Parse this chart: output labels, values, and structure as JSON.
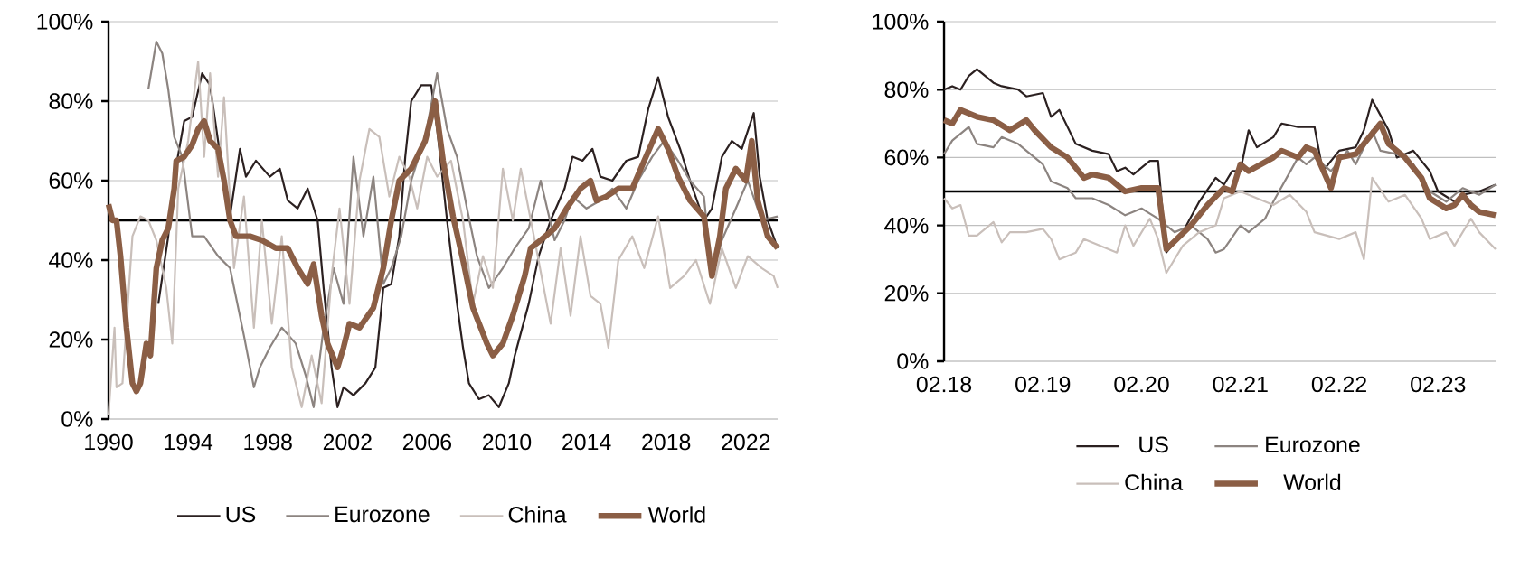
{
  "chart_data": [
    {
      "type": "line",
      "xlim": [
        1990,
        2023.6
      ],
      "ylim": [
        0,
        100
      ],
      "xticks": [
        1990,
        1994,
        1998,
        2002,
        2006,
        2010,
        2014,
        2018,
        2022
      ],
      "yticks": [
        {
          "value": 0,
          "label": "0%"
        },
        {
          "value": 20,
          "label": "20%"
        },
        {
          "value": 40,
          "label": "40%"
        },
        {
          "value": 60,
          "label": "60%"
        },
        {
          "value": 80,
          "label": "80%"
        },
        {
          "value": 100,
          "label": "100%"
        }
      ],
      "grid": "y",
      "legend": "bottom",
      "ref_lines": [
        {
          "axis": "y",
          "value": 50,
          "color": "#000000"
        }
      ],
      "series": [
        {
          "name": "US",
          "color": "#2b2020",
          "x": [
            1992.5,
            1993.0,
            1993.3,
            1993.8,
            1994.2,
            1994.7,
            1995.1,
            1995.5,
            1996.1,
            1996.6,
            1996.9,
            1997.4,
            1998.1,
            1998.6,
            1999.0,
            1999.5,
            2000.0,
            2000.5,
            2000.8,
            2001.2,
            2001.5,
            2001.8,
            2002.3,
            2002.9,
            2003.4,
            2003.8,
            2004.2,
            2004.6,
            2004.9,
            2005.2,
            2005.7,
            2006.2,
            2006.5,
            2007.0,
            2007.5,
            2007.8,
            2008.1,
            2008.6,
            2009.1,
            2009.6,
            2010.1,
            2010.4,
            2011.1,
            2011.6,
            2012.2,
            2012.9,
            2013.3,
            2013.8,
            2014.3,
            2014.7,
            2015.3,
            2016.0,
            2016.6,
            2017.1,
            2017.6,
            2018.1,
            2018.7,
            2019.2,
            2019.9,
            2020.3,
            2020.8,
            2021.3,
            2021.8,
            2022.4,
            2022.7,
            2023.1,
            2023.6
          ],
          "values": [
            29,
            46,
            61,
            75,
            76,
            87,
            84,
            70,
            51,
            68,
            61,
            65,
            61,
            63,
            55,
            53,
            58,
            50,
            33,
            13,
            3,
            8,
            6,
            9,
            13,
            33,
            34,
            46,
            66,
            80,
            84,
            84,
            73,
            50,
            29,
            18,
            9,
            5,
            6,
            3,
            9,
            16,
            29,
            41,
            50,
            58,
            66,
            65,
            68,
            61,
            60,
            65,
            66,
            78,
            86,
            76,
            68,
            60,
            50,
            53,
            66,
            70,
            68,
            77,
            61,
            50,
            43
          ]
        },
        {
          "name": "Eurozone",
          "color": "#8c8480",
          "x": [
            1992.0,
            1992.4,
            1992.7,
            1993.0,
            1993.3,
            1993.7,
            1994.2,
            1994.8,
            1995.5,
            1996.1,
            1996.8,
            1997.3,
            1997.6,
            1998.1,
            1998.7,
            1999.4,
            1999.9,
            2000.3,
            2000.8,
            2001.3,
            2001.8,
            2002.3,
            2002.8,
            2003.3,
            2003.8,
            2004.2,
            2004.7,
            2005.2,
            2005.9,
            2006.5,
            2007.0,
            2007.5,
            2008.0,
            2008.5,
            2009.1,
            2009.8,
            2010.4,
            2011.1,
            2011.7,
            2012.4,
            2012.9,
            2013.3,
            2014.0,
            2014.7,
            2015.3,
            2016.0,
            2016.6,
            2017.3,
            2017.9,
            2018.6,
            2019.2,
            2019.9,
            2020.3,
            2020.8,
            2021.5,
            2022.1,
            2022.8,
            2023.6
          ],
          "values": [
            83,
            95,
            92,
            83,
            71,
            66,
            46,
            46,
            41,
            38,
            21,
            8,
            13,
            18,
            23,
            19,
            11,
            3,
            23,
            38,
            29,
            66,
            46,
            61,
            34,
            38,
            46,
            60,
            71,
            87,
            73,
            66,
            53,
            41,
            33,
            38,
            43,
            48,
            60,
            45,
            50,
            56,
            53,
            55,
            58,
            53,
            60,
            66,
            70,
            65,
            60,
            56,
            36,
            45,
            53,
            60,
            50,
            51
          ]
        },
        {
          "name": "China",
          "color": "#c9bfba",
          "x": [
            1990.0,
            1990.3,
            1990.4,
            1990.7,
            1991.2,
            1991.6,
            1992.0,
            1992.4,
            1992.9,
            1993.2,
            1993.5,
            1994.0,
            1994.5,
            1994.8,
            1995.1,
            1995.5,
            1995.8,
            1996.3,
            1996.8,
            1997.3,
            1997.7,
            1998.2,
            1998.7,
            1999.2,
            1999.7,
            2000.2,
            2000.7,
            2001.2,
            2001.6,
            2002.1,
            2002.6,
            2003.1,
            2003.6,
            2004.1,
            2004.6,
            2005.1,
            2005.5,
            2006.0,
            2006.5,
            2007.2,
            2007.8,
            2008.3,
            2008.8,
            2009.3,
            2009.8,
            2010.3,
            2010.7,
            2011.4,
            2012.2,
            2012.7,
            2013.2,
            2013.7,
            2014.2,
            2014.7,
            2015.1,
            2015.6,
            2016.3,
            2016.9,
            2017.6,
            2018.2,
            2018.9,
            2019.5,
            2020.2,
            2020.8,
            2021.5,
            2022.1,
            2022.8,
            2023.4,
            2023.6
          ],
          "values": [
            1,
            23,
            8,
            9,
            46,
            51,
            50,
            45,
            33,
            19,
            58,
            70,
            90,
            66,
            87,
            61,
            81,
            38,
            56,
            23,
            50,
            24,
            46,
            13,
            3,
            16,
            4,
            36,
            53,
            29,
            60,
            73,
            71,
            56,
            66,
            61,
            53,
            66,
            61,
            65,
            50,
            29,
            41,
            33,
            63,
            50,
            63,
            45,
            24,
            43,
            26,
            46,
            31,
            29,
            18,
            40,
            46,
            38,
            51,
            33,
            36,
            40,
            29,
            43,
            33,
            41,
            38,
            36,
            33
          ]
        },
        {
          "name": "World",
          "color": "#8b5e45",
          "x": [
            1990.0,
            1990.2,
            1990.4,
            1990.6,
            1990.9,
            1991.2,
            1991.4,
            1991.6,
            1991.9,
            1992.1,
            1992.4,
            1992.7,
            1993.0,
            1993.3,
            1993.4,
            1993.8,
            1994.2,
            1994.5,
            1994.8,
            1995.1,
            1995.5,
            1995.8,
            1996.1,
            1996.4,
            1997.1,
            1997.7,
            1998.4,
            1999.0,
            1999.5,
            2000.0,
            2000.3,
            2000.7,
            2001.0,
            2001.5,
            2001.8,
            2002.1,
            2002.6,
            2003.3,
            2003.8,
            2004.2,
            2004.6,
            2005.2,
            2005.9,
            2006.4,
            2006.8,
            2007.3,
            2007.8,
            2008.3,
            2009.0,
            2009.3,
            2009.8,
            2010.3,
            2010.9,
            2011.2,
            2011.7,
            2012.4,
            2013.0,
            2013.7,
            2014.2,
            2014.5,
            2015.0,
            2015.6,
            2016.3,
            2016.9,
            2017.6,
            2018.1,
            2018.6,
            2019.2,
            2019.9,
            2020.3,
            2020.7,
            2021.0,
            2021.5,
            2022.0,
            2022.3,
            2022.6,
            2023.1,
            2023.6
          ],
          "values": [
            54,
            50,
            50,
            41,
            23,
            9,
            7,
            9,
            19,
            16,
            38,
            45,
            48,
            58,
            65,
            66,
            69,
            73,
            75,
            70,
            68,
            60,
            50,
            46,
            46,
            45,
            43,
            43,
            38,
            34,
            39,
            26,
            19,
            13,
            18,
            24,
            23,
            28,
            38,
            50,
            60,
            63,
            70,
            80,
            65,
            51,
            40,
            28,
            19,
            16,
            19,
            26,
            36,
            43,
            45,
            48,
            53,
            58,
            60,
            55,
            56,
            58,
            58,
            65,
            73,
            68,
            61,
            55,
            51,
            36,
            46,
            58,
            63,
            60,
            70,
            55,
            46,
            43
          ]
        }
      ]
    },
    {
      "type": "line",
      "xlim": [
        "2018-02",
        "2023-09"
      ],
      "ylim": [
        0,
        100
      ],
      "xticks": [
        {
          "value": "2018-02",
          "label": "02.18"
        },
        {
          "value": "2019-02",
          "label": "02.19"
        },
        {
          "value": "2020-02",
          "label": "02.20"
        },
        {
          "value": "2021-02",
          "label": "02.21"
        },
        {
          "value": "2022-02",
          "label": "02.22"
        },
        {
          "value": "2023-02",
          "label": "02.23"
        }
      ],
      "yticks": [
        {
          "value": 0,
          "label": "0%"
        },
        {
          "value": 20,
          "label": "20%"
        },
        {
          "value": 40,
          "label": "40%"
        },
        {
          "value": 60,
          "label": "60%"
        },
        {
          "value": 80,
          "label": "80%"
        },
        {
          "value": 100,
          "label": "100%"
        }
      ],
      "grid": "y",
      "legend": "bottom",
      "ref_lines": [
        {
          "axis": "y",
          "value": 50,
          "color": "#000000"
        }
      ],
      "series": [
        {
          "name": "US",
          "color": "#2b2020",
          "x": [
            "2018-02",
            "2018-03",
            "2018-04",
            "2018-05",
            "2018-06",
            "2018-08",
            "2018-09",
            "2018-11",
            "2018-12",
            "2019-02",
            "2019-03",
            "2019-04",
            "2019-06",
            "2019-07",
            "2019-08",
            "2019-10",
            "2019-11",
            "2019-12",
            "2020-01",
            "2020-03",
            "2020-04",
            "2020-05",
            "2020-07",
            "2020-09",
            "2020-11",
            "2020-12",
            "2021-01",
            "2021-02",
            "2021-03",
            "2021-04",
            "2021-06",
            "2021-07",
            "2021-09",
            "2021-11",
            "2021-12",
            "2022-02",
            "2022-04",
            "2022-05",
            "2022-06",
            "2022-08",
            "2022-09",
            "2022-11",
            "2023-01",
            "2023-02",
            "2023-04",
            "2023-05",
            "2023-07",
            "2023-09"
          ],
          "values": [
            80,
            81,
            80,
            84,
            86,
            82,
            81,
            80,
            78,
            79,
            72,
            74,
            64,
            63,
            62,
            61,
            56,
            57,
            55,
            59,
            59,
            32,
            38,
            47,
            54,
            52,
            56,
            56,
            68,
            63,
            66,
            70,
            69,
            69,
            56,
            62,
            63,
            68,
            77,
            68,
            60,
            62,
            56,
            50,
            47,
            49,
            50,
            52
          ]
        },
        {
          "name": "Eurozone",
          "color": "#8c8480",
          "x": [
            "2018-02",
            "2018-03",
            "2018-05",
            "2018-06",
            "2018-08",
            "2018-09",
            "2018-11",
            "2018-12",
            "2019-02",
            "2019-03",
            "2019-05",
            "2019-06",
            "2019-08",
            "2019-10",
            "2019-12",
            "2020-02",
            "2020-04",
            "2020-05",
            "2020-06",
            "2020-08",
            "2020-10",
            "2020-11",
            "2020-12",
            "2021-02",
            "2021-03",
            "2021-05",
            "2021-06",
            "2021-09",
            "2021-10",
            "2021-11",
            "2022-01",
            "2022-03",
            "2022-04",
            "2022-06",
            "2022-07",
            "2022-09",
            "2022-11",
            "2022-12",
            "2023-01",
            "2023-03",
            "2023-05",
            "2023-07",
            "2023-09"
          ],
          "values": [
            61,
            65,
            69,
            64,
            63,
            66,
            64,
            62,
            58,
            53,
            51,
            48,
            48,
            46,
            43,
            45,
            42,
            40,
            38,
            40,
            36,
            32,
            33,
            40,
            38,
            42,
            47,
            60,
            58,
            60,
            56,
            62,
            58,
            68,
            62,
            61,
            58,
            54,
            50,
            47,
            51,
            49,
            52
          ]
        },
        {
          "name": "China",
          "color": "#c9bfba",
          "x": [
            "2018-02",
            "2018-03",
            "2018-04",
            "2018-05",
            "2018-06",
            "2018-08",
            "2018-09",
            "2018-10",
            "2018-12",
            "2019-02",
            "2019-03",
            "2019-04",
            "2019-06",
            "2019-07",
            "2019-09",
            "2019-11",
            "2019-12",
            "2020-01",
            "2020-03",
            "2020-04",
            "2020-05",
            "2020-07",
            "2020-09",
            "2020-11",
            "2020-12",
            "2021-02",
            "2021-04",
            "2021-06",
            "2021-08",
            "2021-10",
            "2021-11",
            "2022-02",
            "2022-04",
            "2022-05",
            "2022-06",
            "2022-08",
            "2022-10",
            "2022-12",
            "2023-01",
            "2023-03",
            "2023-04",
            "2023-06",
            "2023-07",
            "2023-09"
          ],
          "values": [
            48,
            45,
            46,
            37,
            37,
            41,
            35,
            38,
            38,
            39,
            36,
            30,
            32,
            36,
            34,
            32,
            40,
            34,
            42,
            36,
            26,
            34,
            38,
            40,
            48,
            50,
            48,
            46,
            49,
            44,
            38,
            36,
            38,
            30,
            54,
            47,
            49,
            42,
            36,
            38,
            34,
            42,
            38,
            33
          ]
        },
        {
          "name": "World",
          "color": "#8b5e45",
          "x": [
            "2018-02",
            "2018-03",
            "2018-04",
            "2018-06",
            "2018-08",
            "2018-10",
            "2018-12",
            "2019-01",
            "2019-03",
            "2019-05",
            "2019-07",
            "2019-08",
            "2019-10",
            "2019-12",
            "2020-02",
            "2020-04",
            "2020-05",
            "2020-08",
            "2020-10",
            "2020-12",
            "2021-01",
            "2021-02",
            "2021-03",
            "2021-06",
            "2021-07",
            "2021-09",
            "2021-10",
            "2021-11",
            "2022-01",
            "2022-02",
            "2022-04",
            "2022-05",
            "2022-07",
            "2022-08",
            "2022-10",
            "2022-12",
            "2023-01",
            "2023-03",
            "2023-04",
            "2023-05",
            "2023-06",
            "2023-07",
            "2023-09"
          ],
          "values": [
            71,
            70,
            74,
            72,
            71,
            68,
            71,
            68,
            63,
            60,
            54,
            55,
            54,
            50,
            51,
            51,
            33,
            40,
            46,
            51,
            50,
            58,
            56,
            60,
            62,
            60,
            63,
            62,
            51,
            60,
            61,
            64,
            70,
            64,
            60,
            54,
            48,
            45,
            46,
            49,
            46,
            44,
            43
          ]
        }
      ]
    }
  ]
}
